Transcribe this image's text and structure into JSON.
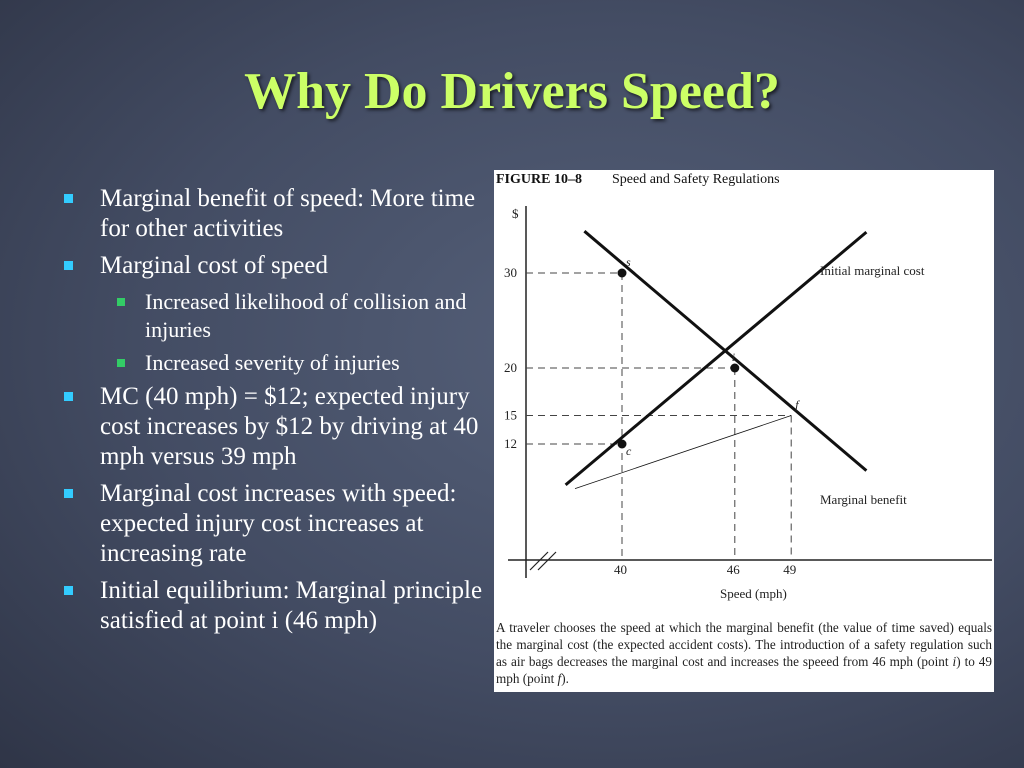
{
  "slide": {
    "title": "Why Do Drivers Speed?",
    "bullets": [
      {
        "level": 1,
        "text": "Marginal benefit of speed: More time for other activities"
      },
      {
        "level": 1,
        "text": "Marginal cost of speed"
      },
      {
        "level": 2,
        "text": "Increased likelihood of collision and injuries"
      },
      {
        "level": 2,
        "text": "Increased severity of injuries"
      },
      {
        "level": 1,
        "text": "MC (40  mph) = $12; expected injury cost increases by $12 by driving at 40 mph versus 39 mph"
      },
      {
        "level": 1,
        "text": "Marginal cost increases with speed: expected injury cost increases at increasing rate"
      },
      {
        "level": 1,
        "text": "Initial equilibrium: Marginal principle satisfied at point i (46 mph)"
      }
    ],
    "colors": {
      "title": "#ccff66",
      "bullet_l1": "#33ccff",
      "bullet_l2": "#33cc66",
      "text": "#ffffff"
    }
  },
  "figure": {
    "number": "FIGURE 10–8",
    "title": "Speed and Safety Regulations",
    "caption": {
      "part1": "A traveler chooses the speed at which the marginal benefit (the value of time saved) equals the marginal cost (the expected accident costs). The introduction of a safety regulation such as air bags decreases the marginal cost and increases the speeed from 46 mph (point ",
      "point1": "i",
      "part2": ") to 49 mph (point ",
      "point2": "f",
      "part3": ")."
    }
  },
  "chart_data": {
    "type": "line",
    "xlabel": "Speed (mph)",
    "ylabel": "$",
    "x_ticks": [
      40,
      46,
      49
    ],
    "y_ticks": [
      12,
      15,
      20,
      30
    ],
    "xlim": [
      35,
      56
    ],
    "ylim": [
      4,
      40
    ],
    "series": [
      {
        "name": "Initial marginal cost",
        "points": [
          [
            37,
            7.7
          ],
          [
            53,
            34.3
          ]
        ]
      },
      {
        "name": "Marginal benefit",
        "points": [
          [
            38,
            34.4
          ],
          [
            53,
            9.2
          ]
        ]
      },
      {
        "name": "",
        "points": [
          [
            37.5,
            7.3
          ],
          [
            49,
            15
          ]
        ]
      }
    ],
    "points": [
      {
        "label": "s",
        "x": 40,
        "y": 30
      },
      {
        "label": "i",
        "x": 46,
        "y": 20
      },
      {
        "label": "f",
        "x": 49,
        "y": 15
      },
      {
        "label": "c",
        "x": 40,
        "y": 12
      }
    ],
    "grid": false
  }
}
